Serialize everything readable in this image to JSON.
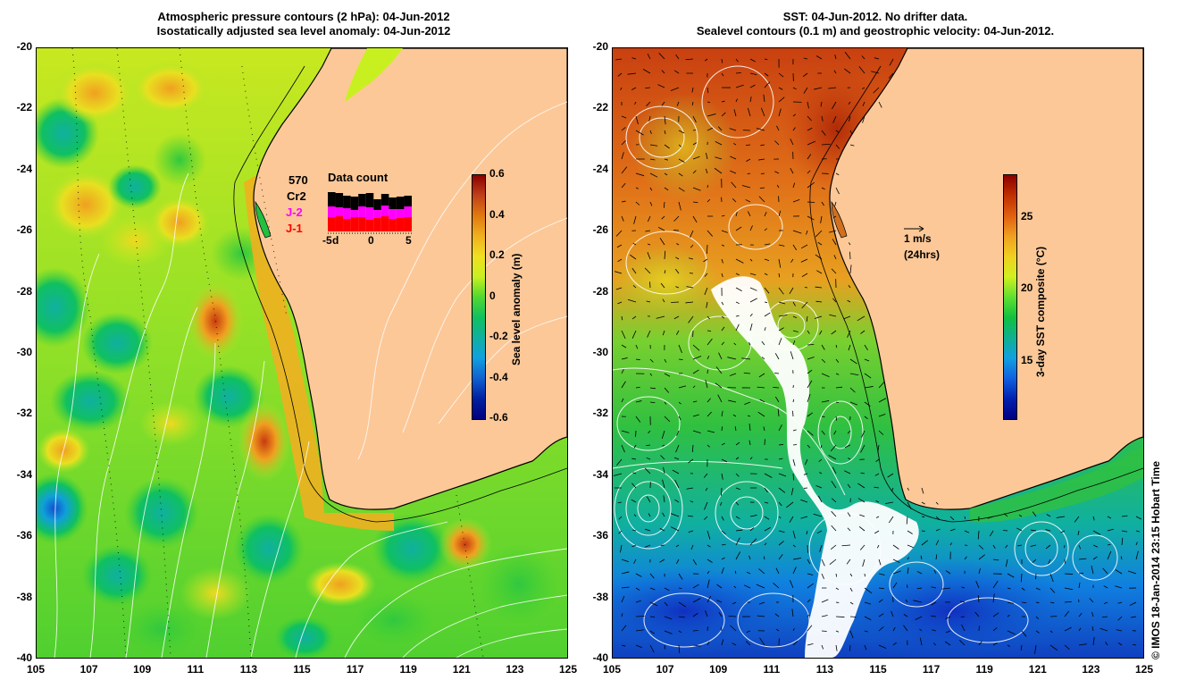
{
  "left_panel": {
    "title_line1": "Atmospheric pressure contours (2 hPa): 04-Jun-2012",
    "title_line2": "Isostatically adjusted sea level anomaly: 04-Jun-2012",
    "colorbar": {
      "label": "Sea level anomaly (m)",
      "ticks": [
        "0.6",
        "0.4",
        "0.2",
        "0",
        "-0.2",
        "-0.4",
        "-0.6"
      ],
      "colors": [
        "#8b0000",
        "#c0401a",
        "#e07a10",
        "#f0b020",
        "#f0e020",
        "#c8f020",
        "#50d830",
        "#10c060",
        "#10b0a0",
        "#10a0e0",
        "#1060d0",
        "#0020a0",
        "#000080"
      ]
    },
    "data_count": {
      "title": "Data count",
      "total": "570",
      "labels": [
        "Cr2",
        "J-2",
        "J-1"
      ],
      "label_colors": [
        "#000000",
        "#ff00ff",
        "#ff0000"
      ],
      "axis_ticks": [
        "-5",
        "d",
        "0",
        "5"
      ]
    }
  },
  "right_panel": {
    "title_line1": "SST: 04-Jun-2012. No drifter data.",
    "title_line2": "Sealevel contours (0.1 m) and geostrophic velocity: 04-Jun-2012.",
    "colorbar": {
      "label": "3-day SST composite (°C)",
      "ticks": [
        "25",
        "20",
        "15"
      ],
      "colors": [
        "#8b0000",
        "#c03000",
        "#e06010",
        "#f0a020",
        "#f0d020",
        "#d0f020",
        "#60e030",
        "#10c040",
        "#10b090",
        "#10a0e0",
        "#1060e0",
        "#0020b0",
        "#000080"
      ]
    },
    "velocity_scale": {
      "label": "1 m/s",
      "sublabel": "(24hrs)"
    }
  },
  "axes": {
    "y_ticks": [
      "-20",
      "-22",
      "-24",
      "-26",
      "-28",
      "-30",
      "-32",
      "-34",
      "-36",
      "-38",
      "-40"
    ],
    "x_ticks": [
      "105",
      "107",
      "109",
      "111",
      "113",
      "115",
      "117",
      "119",
      "121",
      "123",
      "125"
    ],
    "lon_range": [
      105,
      125
    ],
    "lat_range": [
      -40,
      -20
    ]
  },
  "colors": {
    "land": "#fcc898"
  },
  "credit": "© IMOS 18-Jan-2014 23:15 Hobart Time"
}
